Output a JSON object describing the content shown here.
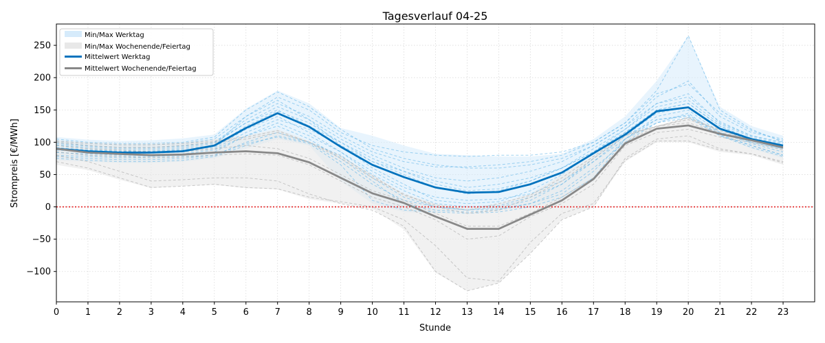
{
  "chart_data": {
    "type": "line",
    "title": "Tagesverlauf 04-25",
    "xlabel": "Stunde",
    "ylabel": "Strompreis [€/MWh]",
    "xlim": [
      0,
      24
    ],
    "ylim": [
      -147,
      283
    ],
    "x": [
      0,
      1,
      2,
      3,
      4,
      5,
      6,
      7,
      8,
      9,
      10,
      11,
      12,
      13,
      14,
      15,
      16,
      17,
      18,
      19,
      20,
      21,
      22,
      23
    ],
    "xticks": [
      0,
      1,
      2,
      3,
      4,
      5,
      6,
      7,
      8,
      9,
      10,
      11,
      12,
      13,
      14,
      15,
      16,
      17,
      18,
      19,
      20,
      21,
      22,
      23
    ],
    "yticks": [
      -100,
      -50,
      0,
      50,
      100,
      150,
      200,
      250
    ],
    "ytick_labels": [
      "−100",
      "−50",
      "0",
      "50",
      "100",
      "150",
      "200",
      "250"
    ],
    "grid": true,
    "legend_position": "top-left",
    "zero_line": {
      "y": 0,
      "color": "#e31a1c",
      "style": "dotted"
    },
    "bands": [
      {
        "name": "Min/Max Werktag",
        "color": "#d6ebfb",
        "min": [
          72,
          70,
          68,
          68,
          70,
          75,
          90,
          105,
          95,
          40,
          5,
          -8,
          -10,
          -5,
          -5,
          0,
          10,
          40,
          100,
          130,
          140,
          110,
          90,
          75
        ],
        "max": [
          108,
          104,
          102,
          103,
          106,
          112,
          152,
          180,
          160,
          122,
          110,
          95,
          82,
          80,
          78,
          78,
          82,
          105,
          140,
          195,
          265,
          155,
          125,
          110
        ]
      },
      {
        "name": "Min/Max Wochenende/Feiertag",
        "color": "#e8e8e8",
        "min": [
          65,
          57,
          42,
          29,
          32,
          34,
          29,
          27,
          12,
          5,
          -3,
          -35,
          -102,
          -130,
          -118,
          -72,
          -20,
          0,
          70,
          100,
          100,
          85,
          80,
          65
        ],
        "max": [
          103,
          100,
          98,
          98,
          100,
          105,
          110,
          120,
          102,
          80,
          50,
          20,
          5,
          -2,
          5,
          20,
          50,
          80,
          115,
          125,
          140,
          120,
          105,
          90
        ]
      }
    ],
    "series": [
      {
        "name": "Mittelwert Werktag",
        "color": "#0072bd",
        "values": [
          90,
          86,
          84,
          84,
          86,
          95,
          122,
          145,
          124,
          93,
          65,
          46,
          30,
          22,
          23,
          35,
          53,
          83,
          112,
          148,
          154,
          121,
          105,
          95
        ]
      },
      {
        "name": "Mittelwert Wochenende/Feiertag",
        "color": "#888888",
        "values": [
          90,
          84,
          82,
          80,
          81,
          84,
          86,
          83,
          69,
          45,
          21,
          6,
          -15,
          -34,
          -34,
          -12,
          10,
          43,
          98,
          121,
          126,
          113,
          103,
          92
        ]
      }
    ],
    "daily_workday": [
      [
        100,
        95,
        92,
        92,
        95,
        100,
        130,
        150,
        125,
        100,
        70,
        55,
        35,
        25,
        28,
        40,
        60,
        85,
        115,
        150,
        160,
        125,
        105,
        95
      ],
      [
        85,
        80,
        78,
        78,
        80,
        85,
        110,
        130,
        110,
        85,
        55,
        30,
        15,
        10,
        12,
        20,
        40,
        70,
        105,
        140,
        150,
        115,
        100,
        90
      ],
      [
        95,
        90,
        88,
        88,
        90,
        95,
        140,
        165,
        135,
        95,
        60,
        35,
        10,
        5,
        8,
        25,
        50,
        85,
        120,
        160,
        175,
        130,
        110,
        100
      ],
      [
        80,
        78,
        76,
        76,
        78,
        80,
        100,
        115,
        100,
        70,
        35,
        10,
        0,
        -5,
        -3,
        5,
        25,
        60,
        100,
        130,
        145,
        110,
        95,
        80
      ],
      [
        105,
        100,
        98,
        98,
        100,
        108,
        150,
        178,
        155,
        120,
        90,
        75,
        65,
        60,
        60,
        65,
        75,
        95,
        125,
        170,
        195,
        140,
        115,
        105
      ],
      [
        90,
        88,
        86,
        86,
        88,
        92,
        120,
        140,
        115,
        85,
        50,
        25,
        5,
        0,
        2,
        15,
        35,
        75,
        110,
        145,
        155,
        120,
        100,
        90
      ],
      [
        98,
        94,
        92,
        92,
        94,
        100,
        135,
        160,
        140,
        110,
        85,
        70,
        62,
        62,
        65,
        70,
        80,
        100,
        130,
        180,
        265,
        150,
        120,
        100
      ],
      [
        88,
        85,
        83,
        83,
        85,
        90,
        115,
        135,
        120,
        95,
        70,
        50,
        30,
        20,
        25,
        40,
        60,
        85,
        115,
        150,
        160,
        125,
        105,
        92
      ],
      [
        75,
        72,
        70,
        70,
        72,
        78,
        95,
        110,
        100,
        80,
        45,
        15,
        0,
        -5,
        0,
        10,
        35,
        70,
        110,
        135,
        140,
        112,
        95,
        80
      ],
      [
        102,
        98,
        96,
        96,
        98,
        105,
        140,
        170,
        150,
        115,
        95,
        85,
        80,
        78,
        80,
        80,
        85,
        100,
        130,
        175,
        190,
        145,
        118,
        102
      ],
      [
        92,
        88,
        86,
        86,
        88,
        94,
        125,
        148,
        130,
        100,
        75,
        55,
        40,
        30,
        35,
        45,
        60,
        90,
        120,
        155,
        165,
        128,
        108,
        96
      ],
      [
        84,
        82,
        80,
        80,
        82,
        88,
        110,
        125,
        105,
        75,
        40,
        5,
        -5,
        -8,
        -5,
        5,
        20,
        55,
        105,
        135,
        142,
        115,
        98,
        85
      ],
      [
        96,
        92,
        90,
        90,
        92,
        98,
        130,
        155,
        135,
        105,
        80,
        60,
        45,
        40,
        45,
        55,
        70,
        95,
        125,
        160,
        170,
        132,
        110,
        98
      ],
      [
        78,
        75,
        73,
        73,
        75,
        80,
        98,
        108,
        98,
        65,
        10,
        -5,
        -8,
        -10,
        -8,
        0,
        15,
        45,
        105,
        130,
        138,
        110,
        92,
        78
      ]
    ],
    "daily_weekend": [
      [
        95,
        90,
        88,
        85,
        86,
        90,
        95,
        90,
        75,
        50,
        25,
        10,
        -10,
        -30,
        -30,
        -10,
        15,
        45,
        100,
        125,
        130,
        115,
        105,
        95
      ],
      [
        80,
        70,
        55,
        40,
        42,
        45,
        45,
        40,
        20,
        5,
        -5,
        -30,
        -100,
        -130,
        -118,
        -72,
        -20,
        0,
        75,
        105,
        110,
        90,
        82,
        70
      ],
      [
        100,
        95,
        92,
        92,
        95,
        100,
        105,
        115,
        100,
        75,
        45,
        20,
        0,
        -10,
        -5,
        15,
        40,
        75,
        110,
        125,
        135,
        120,
        105,
        92
      ],
      [
        85,
        80,
        78,
        76,
        77,
        80,
        82,
        80,
        65,
        40,
        15,
        0,
        -20,
        -50,
        -45,
        -15,
        5,
        35,
        95,
        115,
        120,
        108,
        100,
        88
      ],
      [
        102,
        98,
        96,
        96,
        98,
        102,
        108,
        118,
        100,
        78,
        48,
        18,
        3,
        -5,
        5,
        18,
        45,
        78,
        112,
        124,
        138,
        118,
        104,
        90
      ],
      [
        70,
        60,
        45,
        30,
        32,
        35,
        30,
        28,
        15,
        8,
        0,
        -20,
        -60,
        -110,
        -115,
        -55,
        -10,
        5,
        72,
        102,
        102,
        88,
        82,
        68
      ]
    ]
  }
}
